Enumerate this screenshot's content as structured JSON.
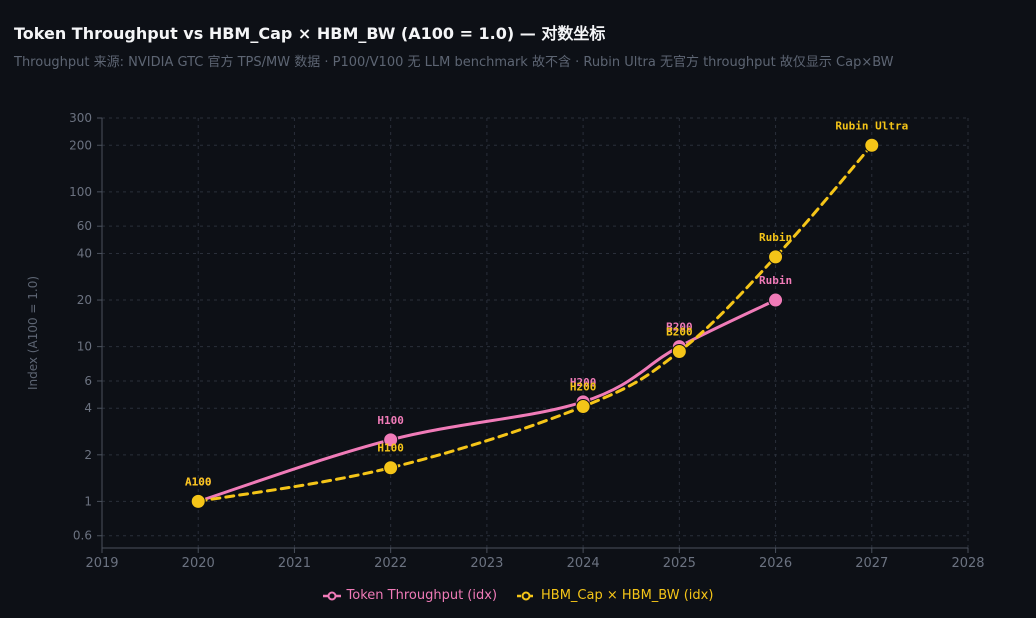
{
  "title": "Token Throughput vs HBM_Cap × HBM_BW (A100 = 1.0) — 对数坐标",
  "subtitle": "Throughput 来源: NVIDIA GTC 官方 TPS/MW 数据 · P100/V100 无 LLM benchmark 故不含 · Rubin Ultra 无官方 throughput 故仅显示 Cap×BW",
  "chart_data": {
    "type": "line",
    "title": "Token Throughput vs HBM_Cap × HBM_BW (A100 = 1.0) — 对数坐标",
    "xlabel": "",
    "ylabel": "Index (A100 = 1.0)",
    "x_ticks": [
      "2019",
      "2020",
      "2021",
      "2022",
      "2023",
      "2024",
      "2025",
      "2026",
      "2027",
      "2028"
    ],
    "xlim": [
      2019,
      2028
    ],
    "y_scale": "log",
    "ylim": [
      0.5,
      300
    ],
    "y_ticks": [
      0.6,
      1,
      2,
      4,
      6,
      10,
      20,
      40,
      60,
      100,
      200,
      300
    ],
    "y_tick_labels": [
      "0.6",
      "1",
      "2",
      "4",
      "6",
      "10",
      "20",
      "40",
      "60",
      "100",
      "200",
      "300"
    ],
    "grid": true,
    "legend_position": "bottom-center",
    "series": [
      {
        "name": "Token Throughput (idx)",
        "color": "#f07bb8",
        "style": "solid",
        "points": [
          {
            "label": "A100",
            "x": 2020,
            "y": 1.0
          },
          {
            "label": "H100",
            "x": 2022,
            "y": 2.5
          },
          {
            "label": "H200",
            "x": 2024,
            "y": 4.4
          },
          {
            "label": "B200",
            "x": 2025,
            "y": 10.0
          },
          {
            "label": "Rubin",
            "x": 2026,
            "y": 20.0
          }
        ]
      },
      {
        "name": "HBM_Cap × HBM_BW (idx)",
        "color": "#f5c518",
        "style": "dashed",
        "points": [
          {
            "label": "A100",
            "x": 2020,
            "y": 1.0
          },
          {
            "label": "H100",
            "x": 2022,
            "y": 1.65
          },
          {
            "label": "H200",
            "x": 2024,
            "y": 4.1
          },
          {
            "label": "B200",
            "x": 2025,
            "y": 9.3
          },
          {
            "label": "Rubin",
            "x": 2026,
            "y": 38.0
          },
          {
            "label": "Rubin Ultra",
            "x": 2027,
            "y": 200.0
          }
        ]
      }
    ]
  }
}
